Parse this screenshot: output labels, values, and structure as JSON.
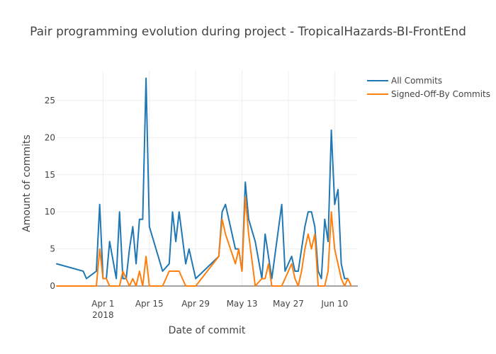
{
  "chart_data": {
    "type": "line",
    "title": "Pair programming evolution during project - TropicalHazards-BI-FrontEnd",
    "xlabel": "Date of commit",
    "ylabel": "Amount of commits",
    "x_range": [
      "2018-03-18",
      "2018-06-17"
    ],
    "ylim": [
      0,
      29
    ],
    "x_ticks": [
      {
        "date": "2018-04-01",
        "label": "Apr 1",
        "sublabel": "2018"
      },
      {
        "date": "2018-04-15",
        "label": "Apr 15",
        "sublabel": ""
      },
      {
        "date": "2018-04-29",
        "label": "Apr 29",
        "sublabel": ""
      },
      {
        "date": "2018-05-13",
        "label": "May 13",
        "sublabel": ""
      },
      {
        "date": "2018-05-27",
        "label": "May 27",
        "sublabel": ""
      },
      {
        "date": "2018-06-10",
        "label": "Jun 10",
        "sublabel": ""
      }
    ],
    "y_ticks": [
      0,
      5,
      10,
      15,
      20,
      25
    ],
    "grid": true,
    "legend_position": "top-right",
    "series": [
      {
        "name": "All Commits",
        "color": "#1f77b4",
        "points": [
          [
            "2018-03-18",
            3
          ],
          [
            "2018-03-26",
            2
          ],
          [
            "2018-03-27",
            1
          ],
          [
            "2018-03-30",
            2
          ],
          [
            "2018-03-31",
            11
          ],
          [
            "2018-04-01",
            1
          ],
          [
            "2018-04-02",
            1
          ],
          [
            "2018-04-03",
            6
          ],
          [
            "2018-04-05",
            1
          ],
          [
            "2018-04-06",
            10
          ],
          [
            "2018-04-07",
            1
          ],
          [
            "2018-04-08",
            1
          ],
          [
            "2018-04-09",
            5
          ],
          [
            "2018-04-10",
            8
          ],
          [
            "2018-04-11",
            3
          ],
          [
            "2018-04-12",
            9
          ],
          [
            "2018-04-13",
            9
          ],
          [
            "2018-04-14",
            28
          ],
          [
            "2018-04-15",
            8
          ],
          [
            "2018-04-19",
            2
          ],
          [
            "2018-04-21",
            3
          ],
          [
            "2018-04-22",
            10
          ],
          [
            "2018-04-23",
            6
          ],
          [
            "2018-04-24",
            10
          ],
          [
            "2018-04-26",
            3
          ],
          [
            "2018-04-27",
            5
          ],
          [
            "2018-04-29",
            1
          ],
          [
            "2018-05-06",
            4
          ],
          [
            "2018-05-07",
            10
          ],
          [
            "2018-05-08",
            11
          ],
          [
            "2018-05-11",
            5
          ],
          [
            "2018-05-12",
            5
          ],
          [
            "2018-05-13",
            2
          ],
          [
            "2018-05-14",
            14
          ],
          [
            "2018-05-15",
            9
          ],
          [
            "2018-05-17",
            6
          ],
          [
            "2018-05-19",
            1
          ],
          [
            "2018-05-20",
            7
          ],
          [
            "2018-05-22",
            1
          ],
          [
            "2018-05-25",
            11
          ],
          [
            "2018-05-26",
            2
          ],
          [
            "2018-05-28",
            4
          ],
          [
            "2018-05-29",
            2
          ],
          [
            "2018-05-30",
            2
          ],
          [
            "2018-06-01",
            8
          ],
          [
            "2018-06-02",
            10
          ],
          [
            "2018-06-03",
            10
          ],
          [
            "2018-06-04",
            8
          ],
          [
            "2018-06-05",
            2
          ],
          [
            "2018-06-06",
            1
          ],
          [
            "2018-06-07",
            9
          ],
          [
            "2018-06-08",
            6
          ],
          [
            "2018-06-09",
            21
          ],
          [
            "2018-06-10",
            11
          ],
          [
            "2018-06-11",
            13
          ],
          [
            "2018-06-12",
            3
          ],
          [
            "2018-06-13",
            1
          ],
          [
            "2018-06-14",
            1
          ]
        ]
      },
      {
        "name": "Signed-Off-By Commits",
        "color": "#ff7f0e",
        "points": [
          [
            "2018-03-18",
            0
          ],
          [
            "2018-03-30",
            0
          ],
          [
            "2018-03-31",
            5
          ],
          [
            "2018-04-01",
            1
          ],
          [
            "2018-04-02",
            1
          ],
          [
            "2018-04-03",
            0
          ],
          [
            "2018-04-06",
            0
          ],
          [
            "2018-04-07",
            2
          ],
          [
            "2018-04-08",
            1
          ],
          [
            "2018-04-09",
            0
          ],
          [
            "2018-04-10",
            1
          ],
          [
            "2018-04-11",
            0
          ],
          [
            "2018-04-12",
            2
          ],
          [
            "2018-04-13",
            0
          ],
          [
            "2018-04-14",
            4
          ],
          [
            "2018-04-15",
            0
          ],
          [
            "2018-04-19",
            0
          ],
          [
            "2018-04-21",
            2
          ],
          [
            "2018-04-24",
            2
          ],
          [
            "2018-04-26",
            0
          ],
          [
            "2018-04-29",
            0
          ],
          [
            "2018-05-06",
            4
          ],
          [
            "2018-05-07",
            9
          ],
          [
            "2018-05-08",
            7
          ],
          [
            "2018-05-11",
            3
          ],
          [
            "2018-05-12",
            5
          ],
          [
            "2018-05-13",
            2
          ],
          [
            "2018-05-14",
            12
          ],
          [
            "2018-05-15",
            7
          ],
          [
            "2018-05-17",
            0
          ],
          [
            "2018-05-19",
            1
          ],
          [
            "2018-05-20",
            1
          ],
          [
            "2018-05-21",
            3
          ],
          [
            "2018-05-22",
            0
          ],
          [
            "2018-05-25",
            0
          ],
          [
            "2018-05-28",
            3
          ],
          [
            "2018-05-29",
            1
          ],
          [
            "2018-05-30",
            0
          ],
          [
            "2018-05-31",
            2
          ],
          [
            "2018-06-01",
            5
          ],
          [
            "2018-06-02",
            7
          ],
          [
            "2018-06-03",
            5
          ],
          [
            "2018-06-04",
            7
          ],
          [
            "2018-06-05",
            0
          ],
          [
            "2018-06-07",
            0
          ],
          [
            "2018-06-08",
            2
          ],
          [
            "2018-06-09",
            10
          ],
          [
            "2018-06-10",
            5
          ],
          [
            "2018-06-12",
            1
          ],
          [
            "2018-06-13",
            0
          ],
          [
            "2018-06-14",
            1
          ],
          [
            "2018-06-15",
            0
          ]
        ]
      }
    ]
  }
}
